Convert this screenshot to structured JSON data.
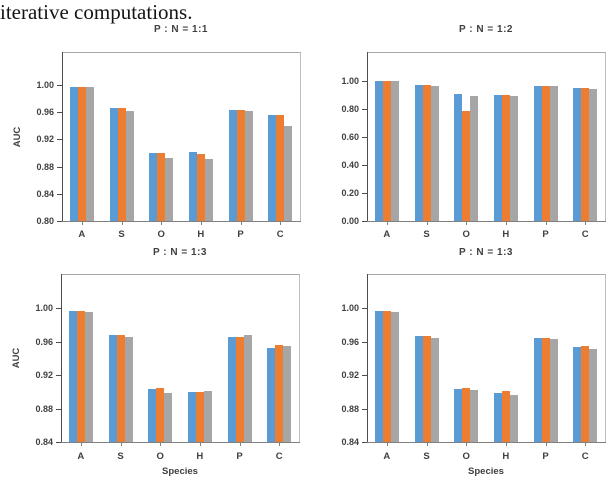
{
  "page": {
    "top_text": "iterative computations."
  },
  "colors": {
    "series": [
      "#5b9bd5",
      "#ed7d31",
      "#a6a6a6"
    ],
    "axis_line": "#808080",
    "spine": "#4d4d4d",
    "plot_border": "#b5b5b5",
    "chart_text": "#404040",
    "body_text": "#141414"
  },
  "chart_data": [
    {
      "type": "bar",
      "title": "P : N = 1:1",
      "ylabel": "AUC",
      "xlabel": "",
      "categories": [
        "A",
        "S",
        "O",
        "H",
        "P",
        "C"
      ],
      "ylim": [
        0.8,
        1.0
      ],
      "yticks": [
        "0.80",
        "0.84",
        "0.88",
        "0.92",
        "0.96",
        "1.00"
      ],
      "grid": false,
      "legend": "none",
      "series": [
        {
          "name": "blue",
          "values": [
            0.997,
            0.966,
            0.9,
            0.901,
            0.963,
            0.956
          ]
        },
        {
          "name": "orange",
          "values": [
            0.997,
            0.966,
            0.9,
            0.898,
            0.963,
            0.956
          ]
        },
        {
          "name": "gray",
          "values": [
            0.996,
            0.961,
            0.893,
            0.891,
            0.962,
            0.94
          ]
        }
      ]
    },
    {
      "type": "bar",
      "title": "P : N = 1:2",
      "ylabel": "",
      "xlabel": "",
      "categories": [
        "A",
        "S",
        "O",
        "H",
        "P",
        "C"
      ],
      "ylim": [
        0.0,
        1.0
      ],
      "yticks": [
        "0.00",
        "0.20",
        "0.40",
        "0.60",
        "0.80",
        "1.00"
      ],
      "grid": false,
      "legend": "none",
      "series": [
        {
          "name": "blue",
          "values": [
            1.0,
            0.973,
            0.908,
            0.9,
            0.965,
            0.949
          ]
        },
        {
          "name": "orange",
          "values": [
            1.0,
            0.973,
            0.785,
            0.901,
            0.965,
            0.949
          ]
        },
        {
          "name": "gray",
          "values": [
            0.999,
            0.969,
            0.895,
            0.895,
            0.964,
            0.948
          ]
        }
      ]
    },
    {
      "type": "bar",
      "title": "P : N = 1:3",
      "ylabel": "AUC",
      "xlabel": "Species",
      "categories": [
        "A",
        "S",
        "O",
        "H",
        "P",
        "C"
      ],
      "ylim": [
        0.84,
        1.0
      ],
      "yticks": [
        "0.84",
        "0.88",
        "0.92",
        "0.96",
        "1.00"
      ],
      "grid": false,
      "legend": "none",
      "series": [
        {
          "name": "blue",
          "values": [
            0.997,
            0.968,
            0.904,
            0.9,
            0.966,
            0.952
          ]
        },
        {
          "name": "orange",
          "values": [
            0.997,
            0.968,
            0.905,
            0.9,
            0.966,
            0.956
          ]
        },
        {
          "name": "gray",
          "values": [
            0.996,
            0.966,
            0.899,
            0.901,
            0.968,
            0.955
          ]
        }
      ]
    },
    {
      "type": "bar",
      "title": "P : N = 1:3",
      "ylabel": "",
      "xlabel": "Species",
      "categories": [
        "A",
        "S",
        "O",
        "H",
        "P",
        "C"
      ],
      "ylim": [
        0.84,
        1.0
      ],
      "yticks": [
        "0.84",
        "0.88",
        "0.92",
        "0.96",
        "1.00"
      ],
      "grid": false,
      "legend": "none",
      "series": [
        {
          "name": "blue",
          "values": [
            0.997,
            0.967,
            0.903,
            0.899,
            0.964,
            0.954
          ]
        },
        {
          "name": "orange",
          "values": [
            0.997,
            0.967,
            0.905,
            0.901,
            0.964,
            0.955
          ]
        },
        {
          "name": "gray",
          "values": [
            0.995,
            0.965,
            0.902,
            0.896,
            0.963,
            0.951
          ]
        }
      ]
    }
  ]
}
